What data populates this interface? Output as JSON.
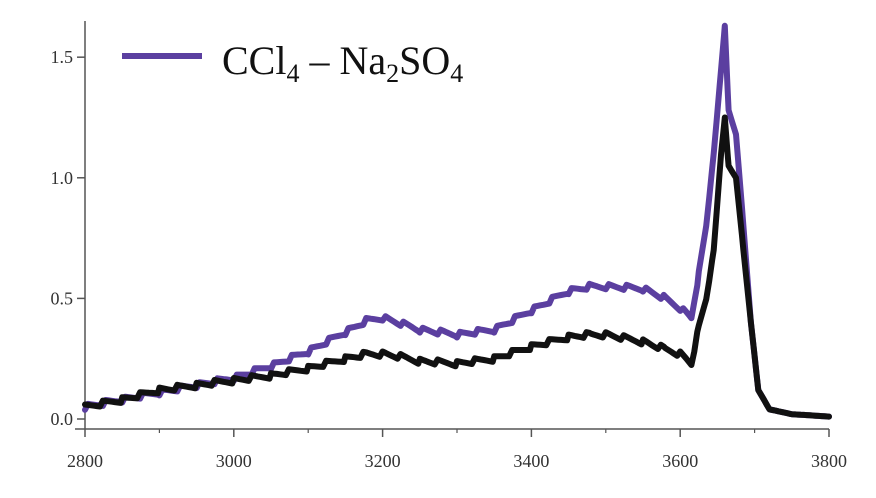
{
  "chart_data": {
    "type": "line",
    "title": "",
    "xlabel": "",
    "ylabel": "",
    "xlim": [
      2800,
      3800
    ],
    "ylim": [
      0.0,
      1.65
    ],
    "x_ticks": [
      2800,
      3000,
      3200,
      3400,
      3600,
      3800
    ],
    "x_tick_labels": [
      "2800",
      "3000",
      "3200",
      "3400",
      "3600",
      "3800"
    ],
    "y_ticks": [
      0.0,
      0.5,
      1.0,
      1.5
    ],
    "y_tick_labels": [
      "0.0",
      "0.5",
      "1.0",
      "1.5"
    ],
    "legend": {
      "placement": "top-left",
      "entries": [
        {
          "base": "CCl",
          "sub1": "4",
          "mid": " – Na",
          "sub2": "2",
          "tail": "SO",
          "sub3": "4"
        }
      ]
    },
    "series": [
      {
        "name": "CCl4 – Na2SO4",
        "color": "#5b3fa0",
        "x": [
          2800,
          2850,
          2900,
          2950,
          3000,
          3050,
          3100,
          3150,
          3180,
          3200,
          3220,
          3250,
          3300,
          3350,
          3400,
          3450,
          3480,
          3500,
          3550,
          3580,
          3600,
          3615,
          3625,
          3635,
          3645,
          3655,
          3660,
          3665,
          3675,
          3685,
          3695,
          3705,
          3720,
          3750,
          3800
        ],
        "y": [
          0.05,
          0.08,
          0.11,
          0.14,
          0.17,
          0.22,
          0.28,
          0.36,
          0.41,
          0.42,
          0.4,
          0.37,
          0.35,
          0.37,
          0.45,
          0.53,
          0.55,
          0.55,
          0.54,
          0.5,
          0.46,
          0.42,
          0.6,
          0.8,
          1.1,
          1.45,
          1.63,
          1.28,
          1.18,
          0.8,
          0.4,
          0.12,
          0.04,
          0.02,
          0.01
        ]
      },
      {
        "name": "",
        "color": "#111111",
        "x": [
          2800,
          2850,
          2900,
          2950,
          3000,
          3050,
          3100,
          3150,
          3180,
          3200,
          3220,
          3250,
          3300,
          3350,
          3400,
          3450,
          3480,
          3500,
          3550,
          3580,
          3600,
          3615,
          3625,
          3635,
          3645,
          3655,
          3660,
          3665,
          3675,
          3685,
          3695,
          3705,
          3720,
          3750,
          3800
        ],
        "y": [
          0.05,
          0.08,
          0.12,
          0.14,
          0.16,
          0.18,
          0.21,
          0.25,
          0.27,
          0.27,
          0.26,
          0.24,
          0.23,
          0.25,
          0.3,
          0.34,
          0.35,
          0.35,
          0.32,
          0.29,
          0.27,
          0.23,
          0.38,
          0.5,
          0.7,
          1.1,
          1.25,
          1.05,
          1.0,
          0.7,
          0.4,
          0.12,
          0.04,
          0.02,
          0.01
        ]
      }
    ]
  }
}
